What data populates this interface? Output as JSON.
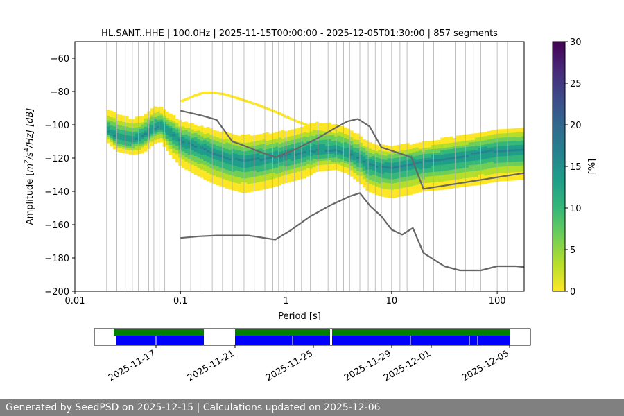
{
  "chart_data": {
    "type": "heatmap",
    "title": "HL.SANT..HHE | 100.0Hz | 2025-11-15T00:00:00 - 2025-12-05T01:30:00 | 857 segments",
    "xlabel": "Period [s]",
    "ylabel_parts": {
      "pre": "Amplitude [",
      "m": "m",
      "e1": "2",
      "s": "/s",
      "e2": "4",
      "post": "/Hz] [dB]"
    },
    "x_scale": "log",
    "xlim": [
      0.01,
      180
    ],
    "ylim": [
      -200,
      -50
    ],
    "x_ticks": [
      0.01,
      0.1,
      1,
      10,
      100
    ],
    "x_tick_labels": [
      "0.01",
      "0.1",
      "1",
      "10",
      "100"
    ],
    "y_ticks": [
      -200,
      -180,
      -160,
      -140,
      -120,
      -100,
      -80,
      -60
    ],
    "y_tick_labels": [
      "−200",
      "−180",
      "−160",
      "−140",
      "−120",
      "−100",
      "−80",
      "−60"
    ],
    "grid_periods": [
      0.02,
      0.025,
      0.03,
      0.035,
      0.04,
      0.045,
      0.05,
      0.056,
      0.063,
      0.071,
      0.1,
      0.125,
      0.16,
      0.2,
      0.25,
      0.31,
      0.4,
      0.5,
      0.63,
      0.75,
      0.85,
      0.95,
      1,
      1.2,
      1.4,
      1.7,
      2,
      2.5,
      3,
      3.5,
      4,
      5,
      6,
      7,
      8,
      10,
      12,
      14,
      20,
      25,
      30,
      40,
      50,
      60,
      70,
      100,
      125
    ],
    "heatmap_bands": {
      "period": [
        0.02,
        0.025,
        0.035,
        0.045,
        0.055,
        0.065,
        0.08,
        0.1,
        0.15,
        0.2,
        0.3,
        0.4,
        0.6,
        0.8,
        1,
        1.5,
        2,
        3,
        4,
        5,
        6,
        8,
        10,
        15,
        20,
        30,
        50,
        70,
        100,
        180
      ],
      "mode": [
        -104,
        -108,
        -110,
        -107,
        -103,
        -101,
        -105,
        -110,
        -114,
        -117,
        -121,
        -122,
        -121,
        -120,
        -119,
        -117,
        -116,
        -116,
        -118,
        -121,
        -124,
        -126,
        -126,
        -124,
        -123,
        -121,
        -119,
        -117,
        -116,
        -115
      ],
      "lower": [
        -110,
        -116,
        -118,
        -117,
        -112,
        -110,
        -118,
        -125,
        -131,
        -135,
        -139,
        -141,
        -139,
        -137,
        -135,
        -132,
        -128,
        -127,
        -130,
        -135,
        -140,
        -143,
        -144,
        -142,
        -140,
        -139,
        -137,
        -136,
        -134,
        -133
      ],
      "upper": [
        -91,
        -94,
        -97,
        -95,
        -90,
        -90,
        -94,
        -98,
        -101,
        -103,
        -106,
        -107,
        -106,
        -105,
        -104,
        -101,
        -99,
        -100,
        -103,
        -107,
        -111,
        -113,
        -113,
        -112,
        -111,
        -109,
        -107,
        -105,
        -103,
        -102
      ]
    },
    "sparse_arc": {
      "period": [
        0.1,
        0.13,
        0.16,
        0.2,
        0.25,
        0.32,
        0.4,
        0.5,
        0.6,
        0.8,
        1,
        1.3,
        1.6,
        2,
        2.5,
        3
      ],
      "value": [
        -85,
        -82,
        -80,
        -80,
        -81,
        -83,
        -85,
        -87,
        -89,
        -92,
        -95,
        -98,
        -100,
        -102,
        -103,
        -104
      ]
    },
    "cbar": {
      "label": "[%]",
      "ticks": [
        0,
        5,
        10,
        15,
        20,
        25,
        30
      ],
      "range": [
        0,
        30
      ]
    },
    "series": [
      {
        "period": [
          0.1,
          0.16,
          0.22,
          0.31,
          0.4,
          0.55,
          0.8,
          1.2,
          2,
          3,
          3.8,
          4.8,
          6.2,
          8,
          15.4,
          20,
          180
        ],
        "value": [
          -91.5,
          -94.5,
          -97,
          -110,
          -112.5,
          -116,
          -119.5,
          -115,
          -108,
          -101.5,
          -98,
          -96.5,
          -101,
          -113.5,
          -119.5,
          -138.5,
          -129
        ]
      },
      {
        "period": [
          0.1,
          0.15,
          0.22,
          0.33,
          0.44,
          0.79,
          1.1,
          1.7,
          2.6,
          4,
          5,
          6.3,
          8,
          10,
          12.6,
          15.9,
          20,
          31.6,
          44.4,
          70,
          100,
          149,
          180
        ],
        "value": [
          -168,
          -167,
          -166.5,
          -166.5,
          -166.5,
          -169,
          -163.5,
          -155,
          -148.5,
          -143,
          -141,
          -149,
          -155,
          -163,
          -166,
          -162,
          -177,
          -185,
          -187.5,
          -187.5,
          -185,
          -185,
          -185.5
        ]
      }
    ]
  },
  "timeline": {
    "date_labels": [
      "2025-11-17",
      "2025-11-21",
      "2025-11-25",
      "2025-11-29",
      "2025-12-01",
      "2025-12-05"
    ],
    "colors": {
      "coverage": "#008000",
      "data": "#0000ff"
    }
  },
  "footer": {
    "text": "Generated by SeedPSD on 2025-12-15 | Calculations updated on 2025-12-06"
  },
  "colors": {
    "noise_model": "#666666",
    "grid": "#b0b0b0",
    "viridis": [
      "#fde725",
      "#b5de2b",
      "#6ece58",
      "#35b779",
      "#1f9e89",
      "#26828e",
      "#31688e",
      "#3e4989",
      "#482878",
      "#440154"
    ]
  }
}
